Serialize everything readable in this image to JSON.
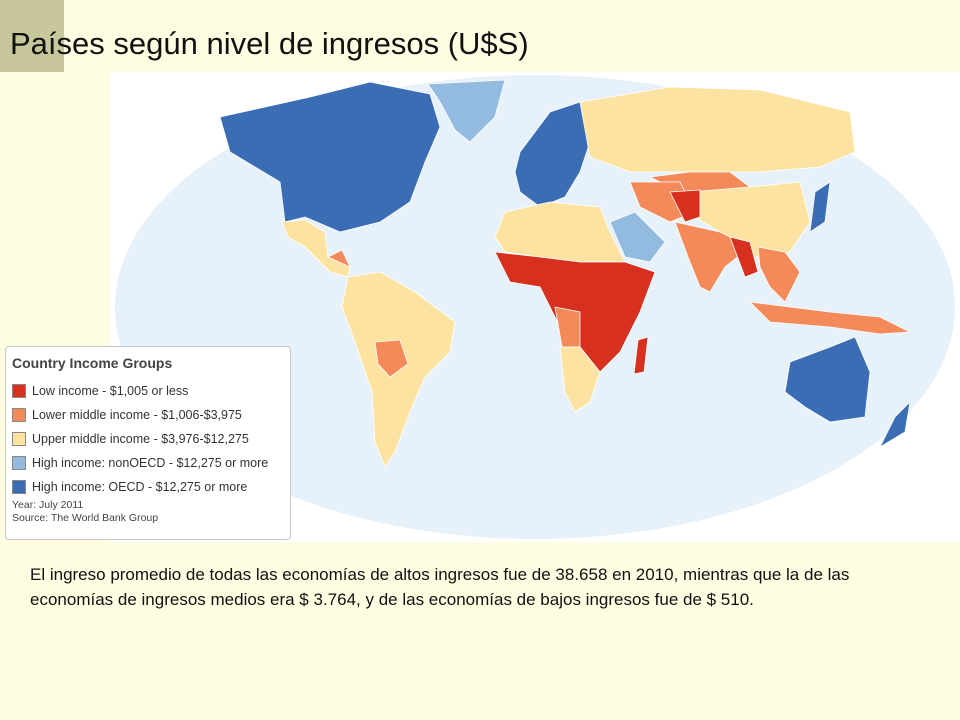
{
  "title": "Países según nivel de ingresos (U$S)",
  "legend": {
    "title": "Country Income Groups",
    "items": [
      {
        "label": "Low income - $1,005 or less",
        "color": "#d7301f"
      },
      {
        "label": "Lower middle income - $1,006-$3,975",
        "color": "#f4895a"
      },
      {
        "label": "Upper middle income - $3,976-$12,275",
        "color": "#fde3a1"
      },
      {
        "label": "High income: nonOECD - $12,275 or more",
        "color": "#93bbdf"
      },
      {
        "label": "High income: OECD - $12,275 or more",
        "color": "#3b6db4"
      }
    ],
    "year": "Year: July 2011",
    "source": "Source: The World Bank Group"
  },
  "body_text": "El ingreso promedio de todas las economías de altos ingresos fue de 38.658 en 2010, mientras que la de las economías de ingresos medios era $ 3.764, y de las economías de bajos ingresos fue de $ 510."
}
